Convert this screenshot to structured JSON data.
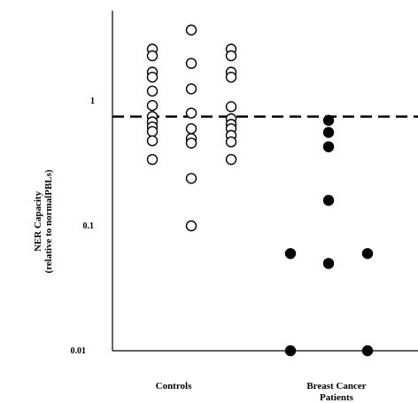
{
  "chart_data": {
    "type": "scatter",
    "y_scale": "log",
    "ylim": [
      0.01,
      5
    ],
    "y_ticks": [
      {
        "value": 0.01,
        "label": "0.01"
      },
      {
        "value": 0.1,
        "label": "0.1"
      },
      {
        "value": 1,
        "label": "1"
      }
    ],
    "ylabel_line1": "NER Capacity",
    "ylabel_line2": "(relative to normalPBLs)",
    "xlabel": "",
    "categories": [
      {
        "label_line1": "Controls",
        "label_line2": ""
      },
      {
        "label_line1": "Breast Cancer",
        "label_line2": "Patients"
      }
    ],
    "reference_line": {
      "value": 0.75,
      "style": "dashed"
    },
    "series": [
      {
        "group": "Controls",
        "marker": "open-circle",
        "columns": [
          {
            "values": [
              2.6,
              2.3,
              1.7,
              1.55,
              1.2,
              0.92,
              0.75,
              0.68,
              0.62,
              0.57,
              0.48,
              0.34
            ]
          },
          {
            "values": [
              3.7,
              2.0,
              1.25,
              0.8,
              0.6,
              0.5,
              0.46,
              0.24,
              0.1
            ]
          },
          {
            "values": [
              2.6,
              2.3,
              1.7,
              1.55,
              0.9,
              0.72,
              0.65,
              0.6,
              0.53,
              0.47,
              0.34
            ]
          }
        ]
      },
      {
        "group": "Breast Cancer Patients",
        "marker": "filled-circle",
        "columns": [
          {
            "values": [
              0.06,
              0.01
            ]
          },
          {
            "values": [
              0.7,
              0.56,
              0.43,
              0.16,
              0.05
            ]
          },
          {
            "values": [
              0.06,
              0.01
            ]
          }
        ]
      }
    ],
    "colors": {
      "axis": "#000000",
      "marker": "#000000",
      "background": "#ffffff"
    },
    "grid": false,
    "legend": "none"
  }
}
